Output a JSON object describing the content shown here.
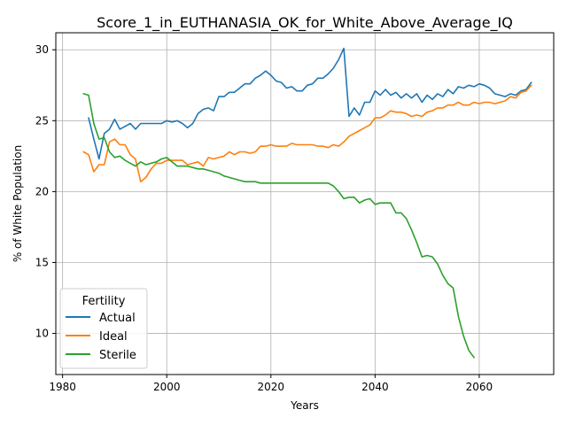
{
  "chart_data": {
    "type": "line",
    "title": "Score_1_in_EUTHANASIA_OK_for_White_Above_Average_IQ",
    "xlabel": "Years",
    "ylabel": "% of White Population",
    "xlim": [
      1978.7,
      2074.3
    ],
    "ylim": [
      7.1,
      31.2
    ],
    "xticks": [
      1980,
      2000,
      2020,
      2040,
      2060
    ],
    "yticks": [
      10,
      15,
      20,
      25,
      30
    ],
    "grid": true,
    "legend": {
      "title": "Fertility",
      "placement": "lower left"
    },
    "series": [
      {
        "name": "Actual",
        "color": "#1f77b4",
        "points": [
          [
            1985,
            25.2
          ],
          [
            1986,
            23.7
          ],
          [
            1987,
            22.3
          ],
          [
            1988,
            24.1
          ],
          [
            1989,
            24.4
          ],
          [
            1990,
            25.1
          ],
          [
            1991,
            24.4
          ],
          [
            1992,
            24.6
          ],
          [
            1993,
            24.8
          ],
          [
            1994,
            24.4
          ],
          [
            1995,
            24.8
          ],
          [
            1996,
            24.8
          ],
          [
            1997,
            24.8
          ],
          [
            1998,
            24.8
          ],
          [
            1999,
            24.8
          ],
          [
            2000,
            25.0
          ],
          [
            2001,
            24.9
          ],
          [
            2002,
            25.0
          ],
          [
            2003,
            24.8
          ],
          [
            2004,
            24.5
          ],
          [
            2005,
            24.8
          ],
          [
            2006,
            25.5
          ],
          [
            2007,
            25.8
          ],
          [
            2008,
            25.9
          ],
          [
            2009,
            25.7
          ],
          [
            2010,
            26.7
          ],
          [
            2011,
            26.7
          ],
          [
            2012,
            27.0
          ],
          [
            2013,
            27.0
          ],
          [
            2014,
            27.3
          ],
          [
            2015,
            27.6
          ],
          [
            2016,
            27.6
          ],
          [
            2017,
            28.0
          ],
          [
            2018,
            28.2
          ],
          [
            2019,
            28.5
          ],
          [
            2020,
            28.2
          ],
          [
            2021,
            27.8
          ],
          [
            2022,
            27.7
          ],
          [
            2023,
            27.3
          ],
          [
            2024,
            27.4
          ],
          [
            2025,
            27.1
          ],
          [
            2026,
            27.1
          ],
          [
            2027,
            27.5
          ],
          [
            2028,
            27.6
          ],
          [
            2029,
            28.0
          ],
          [
            2030,
            28.0
          ],
          [
            2031,
            28.3
          ],
          [
            2032,
            28.7
          ],
          [
            2033,
            29.3
          ],
          [
            2034,
            30.1
          ],
          [
            2035,
            25.3
          ],
          [
            2036,
            25.9
          ],
          [
            2037,
            25.4
          ],
          [
            2038,
            26.3
          ],
          [
            2039,
            26.3
          ],
          [
            2040,
            27.1
          ],
          [
            2041,
            26.8
          ],
          [
            2042,
            27.2
          ],
          [
            2043,
            26.8
          ],
          [
            2044,
            27.0
          ],
          [
            2045,
            26.6
          ],
          [
            2046,
            26.9
          ],
          [
            2047,
            26.6
          ],
          [
            2048,
            26.9
          ],
          [
            2049,
            26.3
          ],
          [
            2050,
            26.8
          ],
          [
            2051,
            26.5
          ],
          [
            2052,
            26.9
          ],
          [
            2053,
            26.7
          ],
          [
            2054,
            27.2
          ],
          [
            2055,
            26.9
          ],
          [
            2056,
            27.4
          ],
          [
            2057,
            27.3
          ],
          [
            2058,
            27.5
          ],
          [
            2059,
            27.4
          ],
          [
            2060,
            27.6
          ],
          [
            2061,
            27.5
          ],
          [
            2062,
            27.3
          ],
          [
            2063,
            26.9
          ],
          [
            2064,
            26.8
          ],
          [
            2065,
            26.7
          ],
          [
            2066,
            26.9
          ],
          [
            2067,
            26.8
          ],
          [
            2068,
            27.1
          ],
          [
            2069,
            27.2
          ],
          [
            2070,
            27.7
          ]
        ]
      },
      {
        "name": "Ideal",
        "color": "#ff7f0e",
        "points": [
          [
            1984,
            22.8
          ],
          [
            1985,
            22.6
          ],
          [
            1986,
            21.4
          ],
          [
            1987,
            21.9
          ],
          [
            1988,
            21.9
          ],
          [
            1989,
            23.5
          ],
          [
            1990,
            23.7
          ],
          [
            1991,
            23.3
          ],
          [
            1992,
            23.3
          ],
          [
            1993,
            22.6
          ],
          [
            1994,
            22.3
          ],
          [
            1995,
            20.7
          ],
          [
            1996,
            21.0
          ],
          [
            1997,
            21.6
          ],
          [
            1998,
            22.0
          ],
          [
            1999,
            22.0
          ],
          [
            2000,
            22.2
          ],
          [
            2001,
            22.2
          ],
          [
            2002,
            22.2
          ],
          [
            2003,
            22.2
          ],
          [
            2004,
            21.9
          ],
          [
            2005,
            22.0
          ],
          [
            2006,
            22.1
          ],
          [
            2007,
            21.8
          ],
          [
            2008,
            22.4
          ],
          [
            2009,
            22.3
          ],
          [
            2010,
            22.4
          ],
          [
            2011,
            22.5
          ],
          [
            2012,
            22.8
          ],
          [
            2013,
            22.6
          ],
          [
            2014,
            22.8
          ],
          [
            2015,
            22.8
          ],
          [
            2016,
            22.7
          ],
          [
            2017,
            22.8
          ],
          [
            2018,
            23.2
          ],
          [
            2019,
            23.2
          ],
          [
            2020,
            23.3
          ],
          [
            2021,
            23.2
          ],
          [
            2022,
            23.2
          ],
          [
            2023,
            23.2
          ],
          [
            2024,
            23.4
          ],
          [
            2025,
            23.3
          ],
          [
            2026,
            23.3
          ],
          [
            2027,
            23.3
          ],
          [
            2028,
            23.3
          ],
          [
            2029,
            23.2
          ],
          [
            2030,
            23.2
          ],
          [
            2031,
            23.1
          ],
          [
            2032,
            23.3
          ],
          [
            2033,
            23.2
          ],
          [
            2034,
            23.5
          ],
          [
            2035,
            23.9
          ],
          [
            2036,
            24.1
          ],
          [
            2037,
            24.3
          ],
          [
            2038,
            24.5
          ],
          [
            2039,
            24.7
          ],
          [
            2040,
            25.2
          ],
          [
            2041,
            25.2
          ],
          [
            2042,
            25.4
          ],
          [
            2043,
            25.7
          ],
          [
            2044,
            25.6
          ],
          [
            2045,
            25.6
          ],
          [
            2046,
            25.5
          ],
          [
            2047,
            25.3
          ],
          [
            2048,
            25.4
          ],
          [
            2049,
            25.3
          ],
          [
            2050,
            25.6
          ],
          [
            2051,
            25.7
          ],
          [
            2052,
            25.9
          ],
          [
            2053,
            25.9
          ],
          [
            2054,
            26.1
          ],
          [
            2055,
            26.1
          ],
          [
            2056,
            26.3
          ],
          [
            2057,
            26.1
          ],
          [
            2058,
            26.1
          ],
          [
            2059,
            26.3
          ],
          [
            2060,
            26.2
          ],
          [
            2061,
            26.3
          ],
          [
            2062,
            26.3
          ],
          [
            2063,
            26.2
          ],
          [
            2064,
            26.3
          ],
          [
            2065,
            26.4
          ],
          [
            2066,
            26.7
          ],
          [
            2067,
            26.6
          ],
          [
            2068,
            27.0
          ],
          [
            2069,
            27.1
          ],
          [
            2070,
            27.5
          ]
        ]
      },
      {
        "name": "Sterile",
        "color": "#2ca02c",
        "points": [
          [
            1984,
            26.9
          ],
          [
            1985,
            26.8
          ],
          [
            1986,
            24.8
          ],
          [
            1987,
            23.7
          ],
          [
            1988,
            23.8
          ],
          [
            1989,
            22.8
          ],
          [
            1990,
            22.4
          ],
          [
            1991,
            22.5
          ],
          [
            1992,
            22.2
          ],
          [
            1993,
            22.0
          ],
          [
            1994,
            21.8
          ],
          [
            1995,
            22.1
          ],
          [
            1996,
            21.9
          ],
          [
            1997,
            22.0
          ],
          [
            1998,
            22.1
          ],
          [
            1999,
            22.3
          ],
          [
            2000,
            22.4
          ],
          [
            2001,
            22.1
          ],
          [
            2002,
            21.8
          ],
          [
            2003,
            21.8
          ],
          [
            2004,
            21.8
          ],
          [
            2005,
            21.7
          ],
          [
            2006,
            21.6
          ],
          [
            2007,
            21.6
          ],
          [
            2008,
            21.5
          ],
          [
            2009,
            21.4
          ],
          [
            2010,
            21.3
          ],
          [
            2011,
            21.1
          ],
          [
            2012,
            21.0
          ],
          [
            2013,
            20.9
          ],
          [
            2014,
            20.8
          ],
          [
            2015,
            20.7
          ],
          [
            2016,
            20.7
          ],
          [
            2017,
            20.7
          ],
          [
            2018,
            20.6
          ],
          [
            2019,
            20.6
          ],
          [
            2020,
            20.6
          ],
          [
            2021,
            20.6
          ],
          [
            2022,
            20.6
          ],
          [
            2023,
            20.6
          ],
          [
            2024,
            20.6
          ],
          [
            2025,
            20.6
          ],
          [
            2026,
            20.6
          ],
          [
            2027,
            20.6
          ],
          [
            2028,
            20.6
          ],
          [
            2029,
            20.6
          ],
          [
            2030,
            20.6
          ],
          [
            2031,
            20.6
          ],
          [
            2032,
            20.4
          ],
          [
            2033,
            20.0
          ],
          [
            2034,
            19.5
          ],
          [
            2035,
            19.6
          ],
          [
            2036,
            19.6
          ],
          [
            2037,
            19.2
          ],
          [
            2038,
            19.4
          ],
          [
            2039,
            19.5
          ],
          [
            2040,
            19.1
          ],
          [
            2041,
            19.2
          ],
          [
            2042,
            19.2
          ],
          [
            2043,
            19.2
          ],
          [
            2044,
            18.5
          ],
          [
            2045,
            18.5
          ],
          [
            2046,
            18.1
          ],
          [
            2047,
            17.3
          ],
          [
            2048,
            16.4
          ],
          [
            2049,
            15.4
          ],
          [
            2050,
            15.5
          ],
          [
            2051,
            15.4
          ],
          [
            2052,
            14.9
          ],
          [
            2053,
            14.1
          ],
          [
            2054,
            13.5
          ],
          [
            2055,
            13.2
          ],
          [
            2056,
            11.2
          ],
          [
            2057,
            9.8
          ],
          [
            2058,
            8.8
          ],
          [
            2059,
            8.3
          ]
        ]
      }
    ]
  }
}
